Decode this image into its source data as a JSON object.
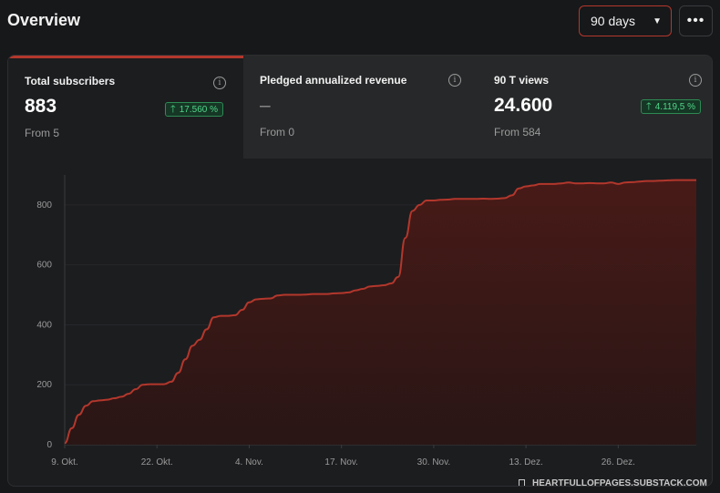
{
  "header": {
    "title": "Overview",
    "range_label": "90 days",
    "more_label": "•••"
  },
  "metrics": [
    {
      "label": "Total subscribers",
      "value": "883",
      "from": "From 5",
      "badge": "17.560 %"
    },
    {
      "label": "Pledged annualized revenue",
      "value": "–",
      "from": "From 0",
      "badge": ""
    },
    {
      "label": "90 T views",
      "value": "24.600",
      "from": "From 584",
      "badge": "4.119,5 %"
    }
  ],
  "watermark": "HEARTFULLOFPAGES.SUBSTACK.COM",
  "colors": {
    "accent": "#b3372c",
    "line": "#b3372c",
    "fill": "#3a1816",
    "badge_text": "#4fd68a",
    "badge_bg": "#163725"
  },
  "chart_data": {
    "type": "area",
    "xlabel": "",
    "ylabel": "",
    "ylim": [
      0,
      900
    ],
    "yticks": [
      0,
      200,
      400,
      600,
      800
    ],
    "x_tick_labels": [
      "9. Okt.",
      "22. Okt.",
      "4. Nov.",
      "17. Nov.",
      "30. Nov.",
      "13. Dez.",
      "26. Dez."
    ],
    "x_tick_days": [
      0,
      13,
      26,
      39,
      52,
      65,
      78
    ],
    "series": [
      {
        "x": [
          0,
          1,
          2,
          3,
          4,
          5,
          6,
          7,
          8,
          9,
          10,
          11,
          12,
          13,
          14,
          15,
          16,
          17,
          18,
          19,
          20,
          21,
          22,
          23,
          24,
          25,
          26,
          27,
          28,
          29,
          30,
          31,
          32,
          33,
          34,
          35,
          36,
          37,
          38,
          39,
          40,
          41,
          42,
          43,
          44,
          45,
          46,
          47,
          48,
          49,
          50,
          51,
          52,
          53,
          54,
          55,
          56,
          57,
          58,
          59,
          60,
          61,
          62,
          63,
          64,
          65,
          66,
          67,
          68,
          69,
          70,
          71,
          72,
          73,
          74,
          75,
          76,
          77,
          78,
          79,
          80,
          81,
          82,
          83,
          84,
          85,
          86,
          87,
          88,
          89
        ],
        "values": [
          5,
          55,
          100,
          130,
          145,
          148,
          150,
          155,
          160,
          170,
          185,
          200,
          202,
          202,
          202,
          210,
          240,
          285,
          330,
          350,
          385,
          425,
          430,
          430,
          432,
          450,
          475,
          485,
          487,
          488,
          498,
          500,
          500,
          500,
          501,
          503,
          503,
          503,
          505,
          506,
          508,
          515,
          520,
          528,
          530,
          532,
          538,
          560,
          690,
          780,
          800,
          815,
          815,
          817,
          818,
          820,
          820,
          820,
          820,
          821,
          820,
          821,
          823,
          832,
          855,
          862,
          865,
          870,
          870,
          870,
          872,
          875,
          872,
          872,
          873,
          872,
          872,
          875,
          870,
          875,
          876,
          878,
          880,
          880,
          881,
          882,
          883,
          883,
          883,
          883
        ]
      }
    ]
  }
}
